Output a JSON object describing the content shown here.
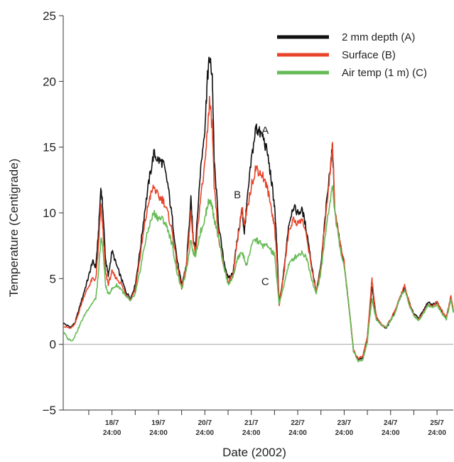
{
  "chart_data": {
    "type": "line",
    "xlabel": "Date (2002)",
    "ylabel": "Temperature (Centigrade)",
    "ylim": [
      -5,
      25
    ],
    "yticks": [
      -5,
      0,
      5,
      10,
      15,
      20,
      25
    ],
    "x_unit": "days from 18/7 00:00 (continuous time axis)",
    "xlim": [
      -0.55,
      7.85
    ],
    "x_ticks": [
      {
        "day": "18/7",
        "time": "24:00"
      },
      {
        "day": "19/7",
        "time": "24:00"
      },
      {
        "day": "20/7",
        "time": "24:00"
      },
      {
        "day": "21/7",
        "time": "24:00"
      },
      {
        "day": "22/7",
        "time": "24:00"
      },
      {
        "day": "23/7",
        "time": "24:00"
      },
      {
        "day": "24/7",
        "time": "24:00"
      },
      {
        "day": "25/7",
        "time": "24:00"
      }
    ],
    "x_tick_positions": [
      0.5,
      1.5,
      2.5,
      3.5,
      4.5,
      5.5,
      6.5,
      7.5
    ],
    "zero_line": true,
    "grid": false,
    "legend_position": "top-right",
    "series": [
      {
        "name": "2 mm depth (A)",
        "color": "#111111",
        "label": "A",
        "points": [
          [
            -0.55,
            1.6
          ],
          [
            -0.4,
            1.3
          ],
          [
            -0.3,
            1.6
          ],
          [
            -0.2,
            2.8
          ],
          [
            -0.1,
            4.0
          ],
          [
            0.0,
            5.2
          ],
          [
            0.08,
            6.3
          ],
          [
            0.15,
            5.9
          ],
          [
            0.2,
            8.0
          ],
          [
            0.26,
            11.9
          ],
          [
            0.3,
            10.5
          ],
          [
            0.36,
            6.5
          ],
          [
            0.42,
            5.2
          ],
          [
            0.5,
            7.1
          ],
          [
            0.6,
            6.0
          ],
          [
            0.7,
            5.0
          ],
          [
            0.8,
            4.0
          ],
          [
            0.9,
            3.5
          ],
          [
            1.0,
            4.5
          ],
          [
            1.1,
            7.0
          ],
          [
            1.2,
            10.0
          ],
          [
            1.3,
            12.5
          ],
          [
            1.4,
            14.5
          ],
          [
            1.5,
            14.0
          ],
          [
            1.6,
            13.8
          ],
          [
            1.7,
            12.2
          ],
          [
            1.8,
            9.5
          ],
          [
            1.9,
            6.5
          ],
          [
            2.0,
            4.5
          ],
          [
            2.1,
            6.0
          ],
          [
            2.2,
            11.0
          ],
          [
            2.25,
            8.0
          ],
          [
            2.3,
            7.5
          ],
          [
            2.4,
            13.0
          ],
          [
            2.5,
            16.5
          ],
          [
            2.55,
            20.0
          ],
          [
            2.6,
            21.8
          ],
          [
            2.66,
            20.5
          ],
          [
            2.7,
            14.0
          ],
          [
            2.8,
            9.0
          ],
          [
            2.9,
            6.5
          ],
          [
            3.0,
            5.0
          ],
          [
            3.1,
            5.4
          ],
          [
            3.2,
            8.0
          ],
          [
            3.3,
            10.2
          ],
          [
            3.35,
            8.5
          ],
          [
            3.4,
            10.5
          ],
          [
            3.5,
            14.0
          ],
          [
            3.6,
            16.5
          ],
          [
            3.65,
            16.2
          ],
          [
            3.75,
            15.8
          ],
          [
            3.85,
            14.5
          ],
          [
            3.95,
            12.0
          ],
          [
            4.0,
            10.5
          ],
          [
            4.05,
            7.5
          ],
          [
            4.1,
            3.0
          ],
          [
            4.2,
            5.5
          ],
          [
            4.3,
            9.0
          ],
          [
            4.4,
            10.5
          ],
          [
            4.5,
            10.0
          ],
          [
            4.6,
            10.2
          ],
          [
            4.7,
            8.5
          ],
          [
            4.8,
            6.0
          ],
          [
            4.9,
            4.0
          ],
          [
            5.0,
            6.0
          ],
          [
            5.1,
            10.0
          ],
          [
            5.2,
            13.5
          ],
          [
            5.25,
            15.0
          ],
          [
            5.3,
            10.0
          ],
          [
            5.4,
            8.0
          ],
          [
            5.5,
            6.0
          ],
          [
            5.6,
            3.0
          ],
          [
            5.7,
            -0.5
          ],
          [
            5.8,
            -1.2
          ],
          [
            5.9,
            -1.0
          ],
          [
            6.0,
            0.5
          ],
          [
            6.05,
            2.5
          ],
          [
            6.1,
            4.5
          ],
          [
            6.15,
            3.0
          ],
          [
            6.2,
            2.0
          ],
          [
            6.3,
            1.5
          ],
          [
            6.4,
            1.2
          ],
          [
            6.5,
            1.8
          ],
          [
            6.6,
            2.5
          ],
          [
            6.7,
            3.5
          ],
          [
            6.8,
            4.3
          ],
          [
            6.9,
            3.2
          ],
          [
            7.0,
            2.3
          ],
          [
            7.1,
            2.0
          ],
          [
            7.2,
            2.5
          ],
          [
            7.3,
            3.2
          ],
          [
            7.4,
            3.0
          ],
          [
            7.5,
            3.2
          ],
          [
            7.6,
            2.5
          ],
          [
            7.7,
            2.0
          ],
          [
            7.8,
            3.5
          ],
          [
            7.85,
            2.5
          ]
        ]
      },
      {
        "name": "Surface (B)",
        "color": "#e8452a",
        "label": "B",
        "points": [
          [
            -0.55,
            1.4
          ],
          [
            -0.4,
            1.2
          ],
          [
            -0.3,
            1.5
          ],
          [
            -0.2,
            2.6
          ],
          [
            -0.1,
            3.7
          ],
          [
            0.0,
            4.4
          ],
          [
            0.08,
            5.0
          ],
          [
            0.15,
            4.9
          ],
          [
            0.2,
            7.0
          ],
          [
            0.26,
            10.5
          ],
          [
            0.3,
            9.0
          ],
          [
            0.36,
            5.5
          ],
          [
            0.42,
            4.6
          ],
          [
            0.5,
            5.5
          ],
          [
            0.6,
            5.0
          ],
          [
            0.7,
            4.6
          ],
          [
            0.8,
            3.8
          ],
          [
            0.9,
            3.4
          ],
          [
            1.0,
            4.2
          ],
          [
            1.1,
            6.5
          ],
          [
            1.2,
            9.0
          ],
          [
            1.3,
            11.0
          ],
          [
            1.4,
            12.0
          ],
          [
            1.5,
            11.2
          ],
          [
            1.6,
            11.0
          ],
          [
            1.7,
            10.0
          ],
          [
            1.8,
            8.5
          ],
          [
            1.9,
            6.0
          ],
          [
            2.0,
            4.3
          ],
          [
            2.1,
            5.8
          ],
          [
            2.2,
            10.0
          ],
          [
            2.25,
            7.8
          ],
          [
            2.3,
            7.0
          ],
          [
            2.4,
            11.0
          ],
          [
            2.5,
            13.5
          ],
          [
            2.55,
            16.0
          ],
          [
            2.6,
            18.5
          ],
          [
            2.66,
            16.5
          ],
          [
            2.7,
            12.0
          ],
          [
            2.8,
            8.0
          ],
          [
            2.9,
            6.0
          ],
          [
            3.0,
            4.8
          ],
          [
            3.1,
            5.2
          ],
          [
            3.2,
            7.8
          ],
          [
            3.3,
            10.5
          ],
          [
            3.35,
            9.0
          ],
          [
            3.4,
            10.0
          ],
          [
            3.5,
            12.0
          ],
          [
            3.6,
            13.5
          ],
          [
            3.65,
            13.2
          ],
          [
            3.75,
            12.8
          ],
          [
            3.85,
            11.8
          ],
          [
            3.95,
            10.0
          ],
          [
            4.0,
            9.0
          ],
          [
            4.05,
            6.5
          ],
          [
            4.1,
            3.0
          ],
          [
            4.2,
            5.3
          ],
          [
            4.3,
            8.5
          ],
          [
            4.4,
            9.5
          ],
          [
            4.5,
            9.2
          ],
          [
            4.6,
            9.5
          ],
          [
            4.7,
            8.0
          ],
          [
            4.8,
            5.8
          ],
          [
            4.9,
            3.9
          ],
          [
            5.0,
            5.8
          ],
          [
            5.1,
            9.8
          ],
          [
            5.2,
            13.2
          ],
          [
            5.25,
            15.3
          ],
          [
            5.3,
            10.2
          ],
          [
            5.4,
            8.0
          ],
          [
            5.5,
            6.2
          ],
          [
            5.6,
            3.0
          ],
          [
            5.7,
            -0.4
          ],
          [
            5.8,
            -1.1
          ],
          [
            5.9,
            -0.9
          ],
          [
            6.0,
            0.6
          ],
          [
            6.05,
            2.8
          ],
          [
            6.1,
            5.0
          ],
          [
            6.15,
            3.2
          ],
          [
            6.2,
            2.0
          ],
          [
            6.3,
            1.5
          ],
          [
            6.4,
            1.3
          ],
          [
            6.5,
            1.9
          ],
          [
            6.6,
            2.6
          ],
          [
            6.7,
            3.6
          ],
          [
            6.8,
            4.5
          ],
          [
            6.9,
            3.2
          ],
          [
            7.0,
            2.2
          ],
          [
            7.1,
            1.9
          ],
          [
            7.2,
            2.4
          ],
          [
            7.3,
            3.0
          ],
          [
            7.4,
            2.9
          ],
          [
            7.5,
            3.2
          ],
          [
            7.6,
            2.6
          ],
          [
            7.7,
            2.0
          ],
          [
            7.8,
            3.7
          ],
          [
            7.85,
            2.6
          ]
        ]
      },
      {
        "name": "Air temp (1 m) (C)",
        "color": "#66bb55",
        "label": "C",
        "points": [
          [
            -0.55,
            1.0
          ],
          [
            -0.45,
            0.4
          ],
          [
            -0.35,
            0.3
          ],
          [
            -0.25,
            1.0
          ],
          [
            -0.15,
            1.8
          ],
          [
            -0.05,
            2.5
          ],
          [
            0.05,
            3.0
          ],
          [
            0.15,
            3.5
          ],
          [
            0.2,
            5.0
          ],
          [
            0.26,
            8.0
          ],
          [
            0.3,
            7.5
          ],
          [
            0.36,
            4.5
          ],
          [
            0.42,
            3.8
          ],
          [
            0.5,
            4.2
          ],
          [
            0.6,
            4.5
          ],
          [
            0.7,
            4.2
          ],
          [
            0.8,
            3.6
          ],
          [
            0.9,
            3.3
          ],
          [
            1.0,
            3.8
          ],
          [
            1.1,
            5.5
          ],
          [
            1.2,
            7.5
          ],
          [
            1.3,
            9.0
          ],
          [
            1.4,
            10.0
          ],
          [
            1.5,
            9.6
          ],
          [
            1.6,
            9.5
          ],
          [
            1.7,
            8.8
          ],
          [
            1.8,
            7.5
          ],
          [
            1.9,
            5.5
          ],
          [
            2.0,
            4.2
          ],
          [
            2.1,
            5.5
          ],
          [
            2.2,
            8.0
          ],
          [
            2.25,
            7.0
          ],
          [
            2.3,
            6.8
          ],
          [
            2.4,
            8.5
          ],
          [
            2.5,
            9.5
          ],
          [
            2.55,
            10.5
          ],
          [
            2.6,
            11.0
          ],
          [
            2.66,
            10.5
          ],
          [
            2.7,
            9.5
          ],
          [
            2.8,
            8.0
          ],
          [
            2.9,
            6.0
          ],
          [
            3.0,
            4.6
          ],
          [
            3.1,
            5.0
          ],
          [
            3.2,
            6.5
          ],
          [
            3.3,
            7.0
          ],
          [
            3.35,
            6.5
          ],
          [
            3.4,
            6.0
          ],
          [
            3.5,
            7.5
          ],
          [
            3.6,
            8.0
          ],
          [
            3.65,
            7.8
          ],
          [
            3.75,
            7.5
          ],
          [
            3.85,
            7.5
          ],
          [
            3.95,
            7.0
          ],
          [
            4.0,
            6.8
          ],
          [
            4.05,
            5.0
          ],
          [
            4.1,
            3.0
          ],
          [
            4.2,
            4.5
          ],
          [
            4.3,
            6.0
          ],
          [
            4.4,
            6.5
          ],
          [
            4.5,
            6.8
          ],
          [
            4.6,
            7.0
          ],
          [
            4.7,
            6.5
          ],
          [
            4.8,
            5.0
          ],
          [
            4.9,
            3.8
          ],
          [
            5.0,
            5.5
          ],
          [
            5.1,
            8.5
          ],
          [
            5.2,
            11.0
          ],
          [
            5.25,
            12.0
          ],
          [
            5.3,
            10.0
          ],
          [
            5.4,
            7.5
          ],
          [
            5.5,
            6.0
          ],
          [
            5.6,
            3.0
          ],
          [
            5.7,
            -0.5
          ],
          [
            5.8,
            -1.3
          ],
          [
            5.9,
            -1.2
          ],
          [
            6.0,
            0.2
          ],
          [
            6.05,
            2.0
          ],
          [
            6.1,
            3.5
          ],
          [
            6.15,
            2.5
          ],
          [
            6.2,
            1.8
          ],
          [
            6.3,
            1.5
          ],
          [
            6.4,
            1.3
          ],
          [
            6.5,
            1.8
          ],
          [
            6.6,
            2.4
          ],
          [
            6.7,
            3.5
          ],
          [
            6.8,
            4.2
          ],
          [
            6.9,
            3.0
          ],
          [
            7.0,
            2.2
          ],
          [
            7.1,
            1.8
          ],
          [
            7.2,
            2.3
          ],
          [
            7.3,
            3.0
          ],
          [
            7.4,
            2.8
          ],
          [
            7.5,
            3.0
          ],
          [
            7.6,
            2.4
          ],
          [
            7.7,
            1.9
          ],
          [
            7.8,
            3.4
          ],
          [
            7.85,
            2.4
          ]
        ]
      }
    ],
    "annotations": [
      {
        "text": "A",
        "x": 3.8,
        "y": 16.0
      },
      {
        "text": "B",
        "x": 3.2,
        "y": 11.1
      },
      {
        "text": "C",
        "x": 3.8,
        "y": 4.5
      }
    ]
  }
}
